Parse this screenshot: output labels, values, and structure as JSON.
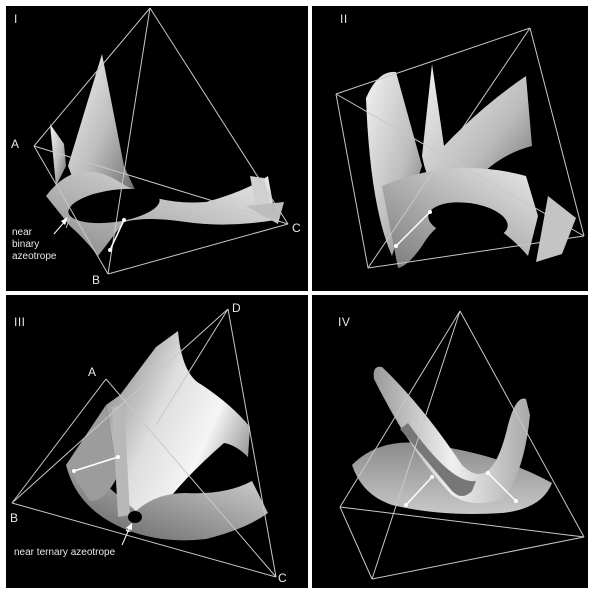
{
  "panels": [
    {
      "numeral": "I",
      "vertex_labels": [
        "A",
        "B",
        "C"
      ],
      "annotation": [
        "near",
        "binary",
        "azeotrope"
      ]
    },
    {
      "numeral": "II"
    },
    {
      "numeral": "III",
      "vertex_labels": [
        "A",
        "B",
        "C",
        "D"
      ],
      "annotation": [
        "near ternary azeotrope"
      ]
    },
    {
      "numeral": "IV"
    }
  ],
  "colors": {
    "background": "#000000",
    "wire": "#c8c8c8",
    "surface_light": "#f2f2f2",
    "surface_dark": "#6a6a6a",
    "divider": "#ffffff"
  }
}
